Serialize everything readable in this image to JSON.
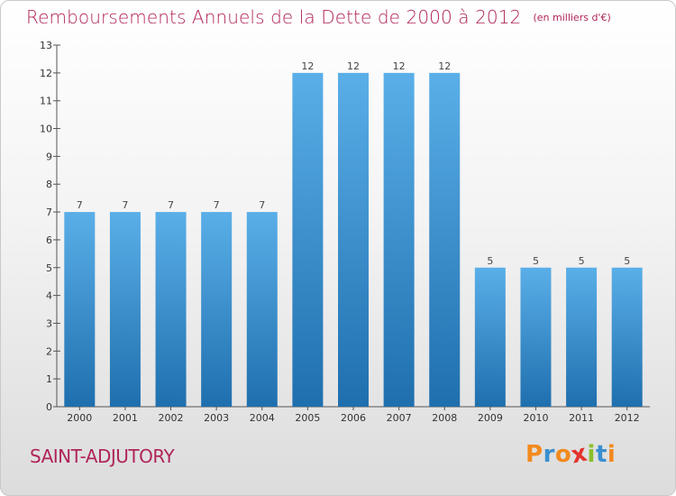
{
  "header": {
    "title": "Remboursements Annuels de la Dette de 2000 à 2012",
    "subtitle": "(en milliers d'€)"
  },
  "footer": {
    "commune": "SAINT-ADJUTORY",
    "logo_text": "Proxiti"
  },
  "colors": {
    "title": "#b0245a",
    "bar_top": "#5aafe8",
    "bar_bottom": "#1f6fae",
    "logo_letters": [
      "#f28a1e",
      "#3a8fd0",
      "#f28a1e",
      "#e2342c",
      "#8bbf2a",
      "#3a8fd0",
      "#f28a1e"
    ]
  },
  "chart_data": {
    "type": "bar",
    "title": "Remboursements Annuels de la Dette de 2000 à 2012",
    "subtitle": "(en milliers d'€)",
    "xlabel": "",
    "ylabel": "",
    "categories": [
      "2000",
      "2001",
      "2002",
      "2003",
      "2004",
      "2005",
      "2006",
      "2007",
      "2008",
      "2009",
      "2010",
      "2011",
      "2012"
    ],
    "values": [
      7,
      7,
      7,
      7,
      7,
      12,
      12,
      12,
      12,
      5,
      5,
      5,
      5
    ],
    "ylim": [
      0,
      13
    ],
    "yticks": [
      0,
      1,
      2,
      3,
      4,
      5,
      6,
      7,
      8,
      9,
      10,
      11,
      12,
      13
    ],
    "grid": false,
    "data_labels": true
  }
}
